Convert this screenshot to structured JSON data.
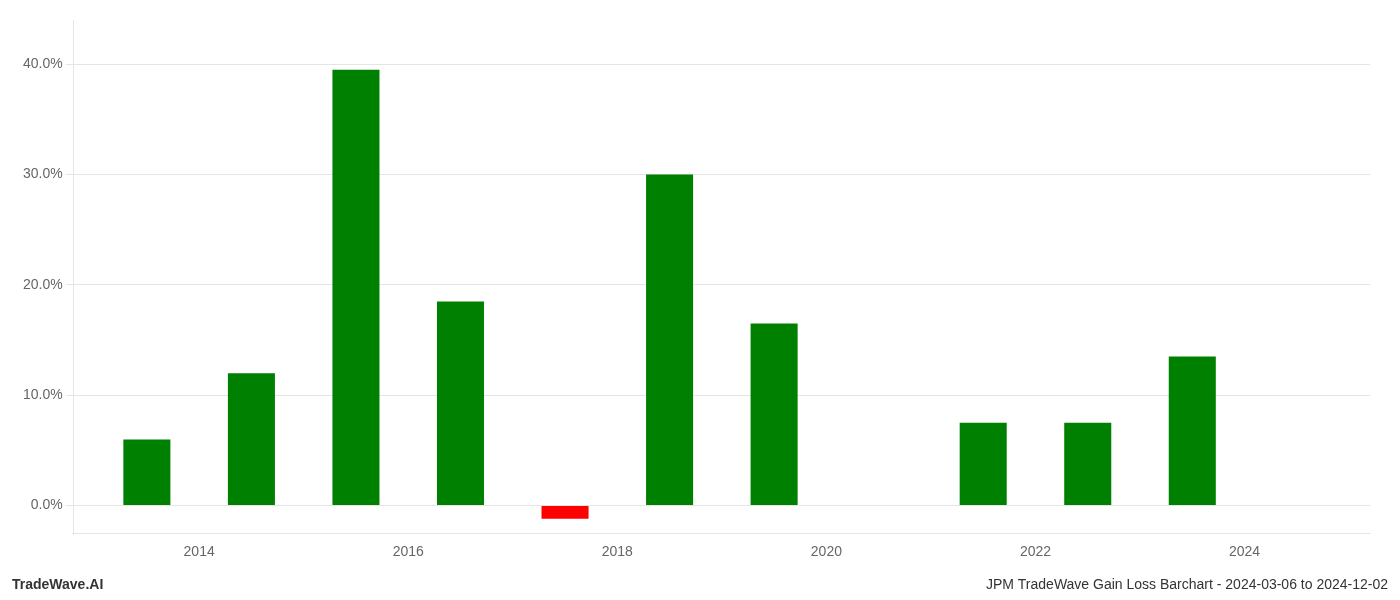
{
  "chart_data": {
    "type": "bar",
    "x": [
      2013.5,
      2014.5,
      2015.5,
      2016.5,
      2017.5,
      2018.5,
      2019.5,
      2021.0,
      2021.5,
      2022.5,
      2023.5
    ],
    "values": [
      0.06,
      0.12,
      0.395,
      0.185,
      -0.012,
      0.3,
      0.165,
      null,
      0.075,
      0.075,
      0.135
    ],
    "colors": [
      "#008000",
      "#008000",
      "#008000",
      "#008000",
      "#ff0000",
      "#008000",
      "#008000",
      null,
      "#008000",
      "#008000",
      "#008000"
    ],
    "xlim": [
      2012.8,
      2025.2
    ],
    "xticks": [
      2014,
      2016,
      2018,
      2020,
      2022,
      2024
    ],
    "ylim": [
      -0.025,
      0.44
    ],
    "yticks": [
      {
        "value": 0.0,
        "label": "0.0%"
      },
      {
        "value": 0.1,
        "label": "10.0%"
      },
      {
        "value": 0.2,
        "label": "20.0%"
      },
      {
        "value": 0.3,
        "label": "30.0%"
      },
      {
        "value": 0.4,
        "label": "40.0%"
      }
    ],
    "grid": "y",
    "annotations": [
      "TradeWave.AI",
      "JPM TradeWave Gain Loss Barchart - 2024-03-06 to 2024-12-02"
    ]
  }
}
